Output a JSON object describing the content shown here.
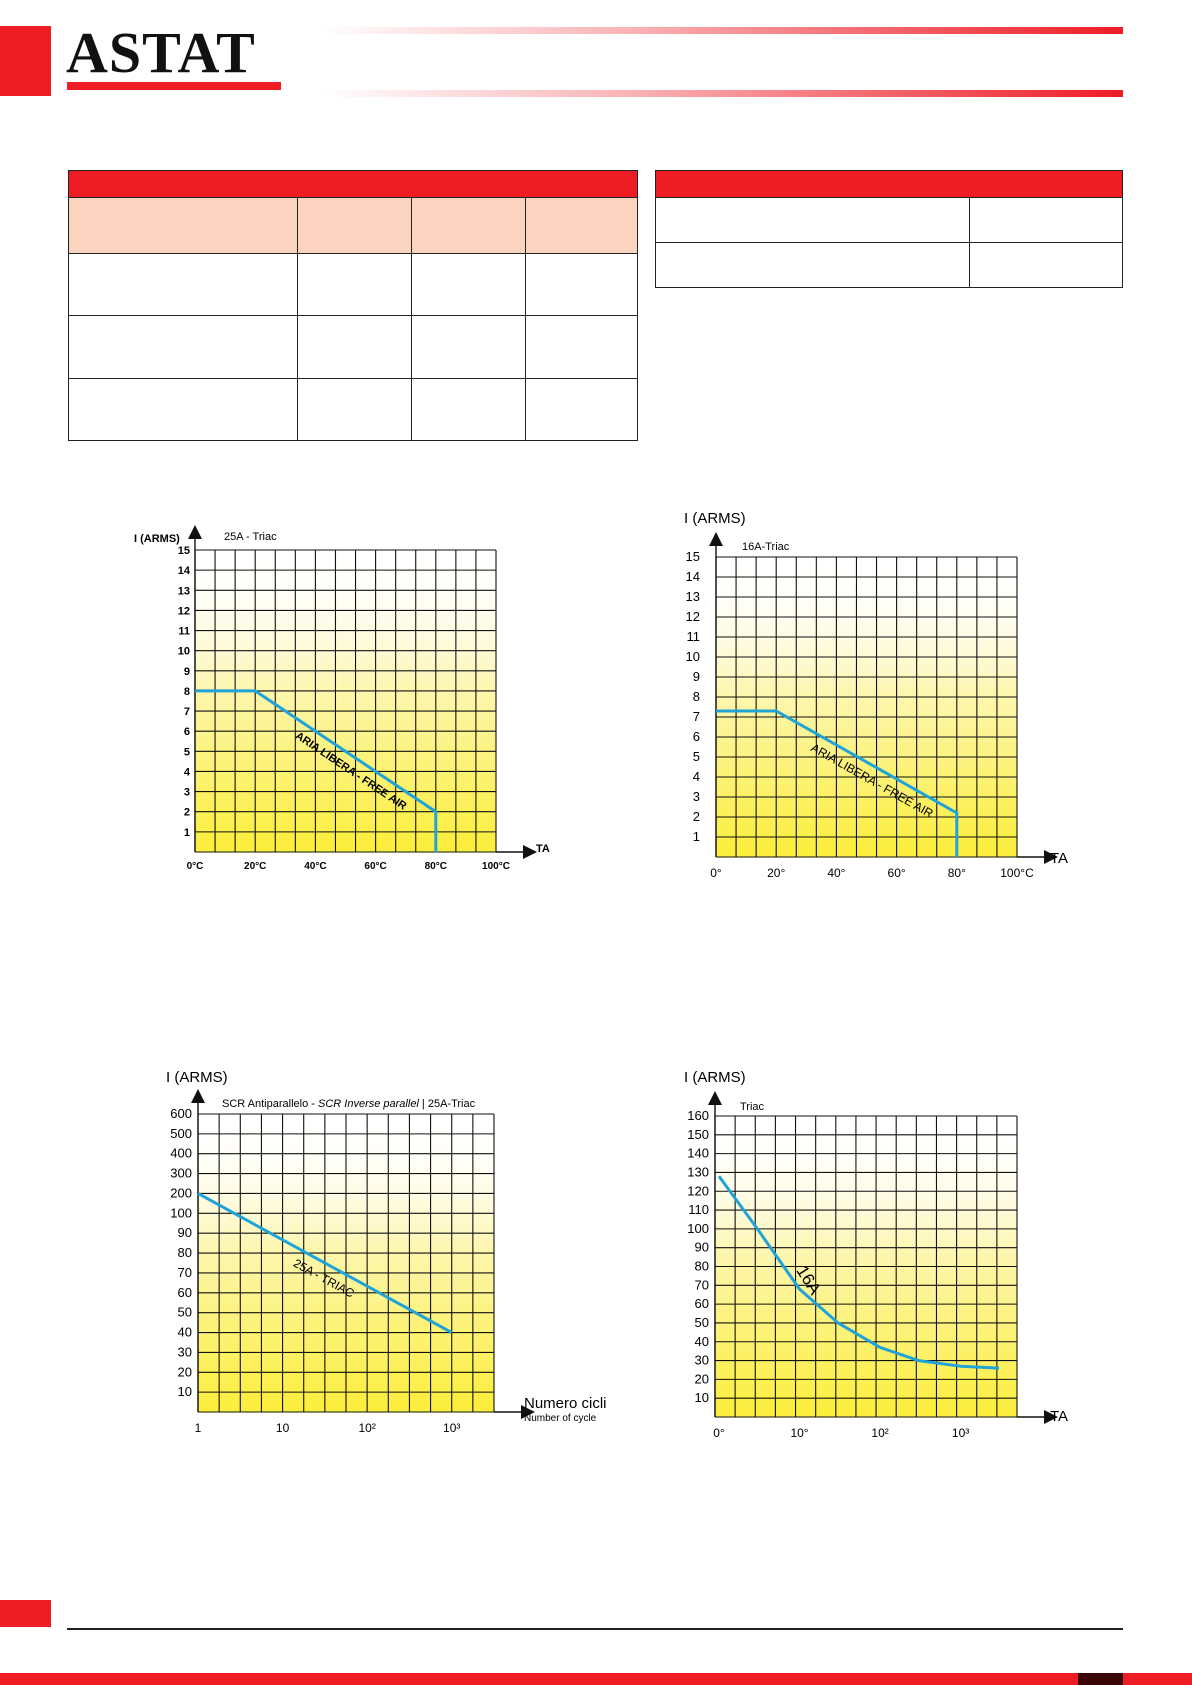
{
  "brand": {
    "name": "ASTAT",
    "color": "#ee1c25"
  },
  "colors": {
    "accent": "#ee1c25",
    "table_subheader": "#fbd3c1",
    "curve": "#1fa3d8",
    "fill_yellow": "#fbef3a"
  },
  "tables": {
    "left": {
      "header": "",
      "columns": [
        "",
        "",
        "",
        ""
      ],
      "rows": [
        [
          "",
          "",
          "",
          ""
        ],
        [
          "",
          "",
          "",
          ""
        ],
        [
          "",
          "",
          "",
          ""
        ]
      ]
    },
    "right": {
      "header": "",
      "rows": [
        [
          "",
          ""
        ],
        [
          "",
          ""
        ]
      ]
    }
  },
  "chart_data": [
    {
      "type": "line",
      "title": "25A - Triac",
      "ylabel": "I (ARMS)",
      "xlabel": "TA",
      "x_ticks": [
        "0°C",
        "20°C",
        "40°C",
        "60°C",
        "80°C",
        "100°C"
      ],
      "y_ticks": [
        "1",
        "2",
        "3",
        "4",
        "5",
        "6",
        "7",
        "8",
        "9",
        "10",
        "11",
        "12",
        "13",
        "14",
        "15"
      ],
      "xlim": [
        0,
        100
      ],
      "ylim": [
        0,
        15
      ],
      "grid": true,
      "series": [
        {
          "name": "ARIA LIBERA - FREE AIR",
          "x": [
            0,
            20,
            80,
            80
          ],
          "y": [
            8,
            8,
            2,
            0
          ]
        }
      ]
    },
    {
      "type": "line",
      "title": "16A-Triac",
      "ylabel": "I (ARMS)",
      "xlabel": "TA",
      "x_ticks": [
        "0°",
        "20°",
        "40°",
        "60°",
        "80°",
        "100°C"
      ],
      "y_ticks": [
        "1",
        "2",
        "3",
        "4",
        "5",
        "6",
        "7",
        "8",
        "9",
        "10",
        "11",
        "12",
        "13",
        "14",
        "15"
      ],
      "xlim": [
        0,
        100
      ],
      "ylim": [
        0,
        15
      ],
      "grid": true,
      "series": [
        {
          "name": "ARIA LIBERA - FREE AIR",
          "x": [
            0,
            20,
            80,
            80
          ],
          "y": [
            7.3,
            7.3,
            2.2,
            0
          ]
        }
      ]
    },
    {
      "type": "line",
      "title": "SCR Antiparallelo - SCR Inverse parallel | 25A-Triac",
      "title_parts": [
        "SCR Antiparallelo - ",
        "SCR Inverse parallel",
        " | 25A-Triac"
      ],
      "ylabel": "I (ARMS)",
      "xlabel": "Numero cicli",
      "xlabel2": "Number of cycle",
      "x_ticks": [
        "1",
        "10",
        "10²",
        "10³"
      ],
      "y_ticks": [
        "10",
        "20",
        "30",
        "40",
        "50",
        "60",
        "70",
        "80",
        "90",
        "100",
        "200",
        "300",
        "400",
        "500",
        "600"
      ],
      "grid": true,
      "series": [
        {
          "name": "25A - TRIAC",
          "x": [
            1,
            1000
          ],
          "y": [
            200,
            40
          ]
        }
      ]
    },
    {
      "type": "line",
      "title": "Triac",
      "ylabel": "I (ARMS)",
      "xlabel": "TA",
      "x_ticks": [
        "0°",
        "10°",
        "10²",
        "10³"
      ],
      "y_ticks": [
        "10",
        "20",
        "30",
        "40",
        "50",
        "60",
        "70",
        "80",
        "90",
        "100",
        "110",
        "120",
        "130",
        "140",
        "150",
        "160"
      ],
      "grid": true,
      "series": [
        {
          "name": "16A",
          "x": [
            1,
            3,
            10,
            30,
            100,
            300,
            1000,
            3000
          ],
          "y": [
            128,
            100,
            68,
            50,
            37,
            30,
            27,
            26
          ]
        }
      ]
    }
  ]
}
